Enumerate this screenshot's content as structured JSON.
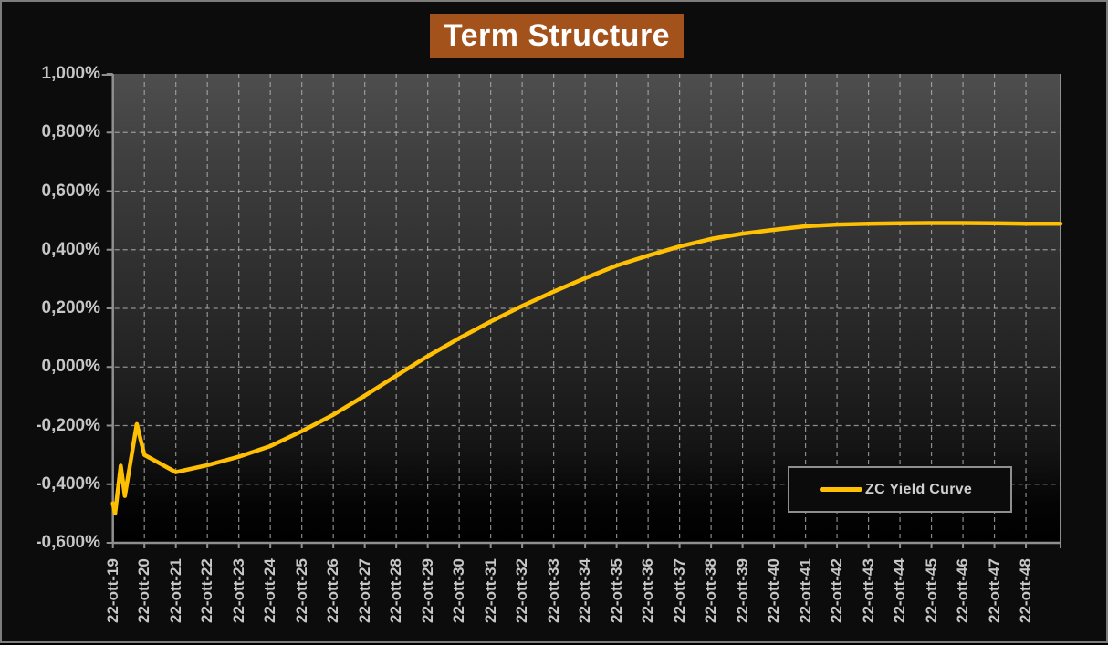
{
  "frame": {
    "background": "#0c0c0c",
    "border_color": "#7d7d7d"
  },
  "title": {
    "text": "Term Structure",
    "bg_color": "#A3521C",
    "text_color": "#FFFFFF"
  },
  "plot": {
    "bg_gradient_top": "#4e4e4e",
    "bg_gradient_bottom": "#000000",
    "axis_color": "#8f8f8f",
    "grid_color": "#b5b5b5",
    "label_color": "#c7c7c7"
  },
  "legend": {
    "label": "ZC Yield Curve",
    "swatch_color": "#FFC003",
    "border_color": "#8f8f8f",
    "bg_color": "#0b0b0b",
    "text_color": "#d0d0d0"
  },
  "chart_data": {
    "type": "line",
    "title": "Term Structure",
    "xlabel": "",
    "ylabel": "",
    "grid": "dashed",
    "legend_position": "inside-bottom-right",
    "ylim": [
      -0.6,
      1.0
    ],
    "xlim_years": [
      0,
      30.1
    ],
    "x_unit": "years from 22-ott-19",
    "y_ticks": [
      {
        "label": "1,000%",
        "value": 1.0
      },
      {
        "label": "0,800%",
        "value": 0.8
      },
      {
        "label": "0,600%",
        "value": 0.6
      },
      {
        "label": "0,400%",
        "value": 0.4
      },
      {
        "label": "0,200%",
        "value": 0.2
      },
      {
        "label": "0,000%",
        "value": 0.0
      },
      {
        "label": "-0,200%",
        "value": -0.2
      },
      {
        "label": "-0,400%",
        "value": -0.4
      },
      {
        "label": "-0,600%",
        "value": -0.6
      }
    ],
    "categories": [
      "22-ott-19",
      "22-ott-20",
      "22-ott-21",
      "22-ott-22",
      "22-ott-23",
      "22-ott-24",
      "22-ott-25",
      "22-ott-26",
      "22-ott-27",
      "22-ott-28",
      "22-ott-29",
      "22-ott-30",
      "22-ott-31",
      "22-ott-32",
      "22-ott-33",
      "22-ott-34",
      "22-ott-35",
      "22-ott-36",
      "22-ott-37",
      "22-ott-38",
      "22-ott-39",
      "22-ott-40",
      "22-ott-41",
      "22-ott-42",
      "22-ott-43",
      "22-ott-44",
      "22-ott-45",
      "22-ott-46",
      "22-ott-47",
      "22-ott-48"
    ],
    "series": [
      {
        "name": "ZC Yield Curve",
        "color": "#FFC003",
        "unit": "%",
        "points": [
          [
            0,
            -0.465
          ],
          [
            0.07,
            -0.5
          ],
          [
            0.25,
            -0.337
          ],
          [
            0.38,
            -0.44
          ],
          [
            0.76,
            -0.195
          ],
          [
            1,
            -0.3
          ],
          [
            2,
            -0.359
          ],
          [
            3,
            -0.335
          ],
          [
            4,
            -0.306
          ],
          [
            5,
            -0.27
          ],
          [
            6,
            -0.219
          ],
          [
            7,
            -0.163
          ],
          [
            8,
            -0.098
          ],
          [
            9,
            -0.03
          ],
          [
            10,
            0.037
          ],
          [
            11,
            0.098
          ],
          [
            12,
            0.155
          ],
          [
            13,
            0.208
          ],
          [
            14,
            0.257
          ],
          [
            15,
            0.303
          ],
          [
            16,
            0.346
          ],
          [
            17,
            0.38
          ],
          [
            18,
            0.411
          ],
          [
            19,
            0.437
          ],
          [
            20,
            0.455
          ],
          [
            21,
            0.468
          ],
          [
            22,
            0.48
          ],
          [
            23,
            0.486
          ],
          [
            24,
            0.489
          ],
          [
            25,
            0.49
          ],
          [
            26,
            0.491
          ],
          [
            27,
            0.491
          ],
          [
            28,
            0.49
          ],
          [
            29,
            0.489
          ],
          [
            30.1,
            0.489
          ]
        ]
      }
    ]
  }
}
